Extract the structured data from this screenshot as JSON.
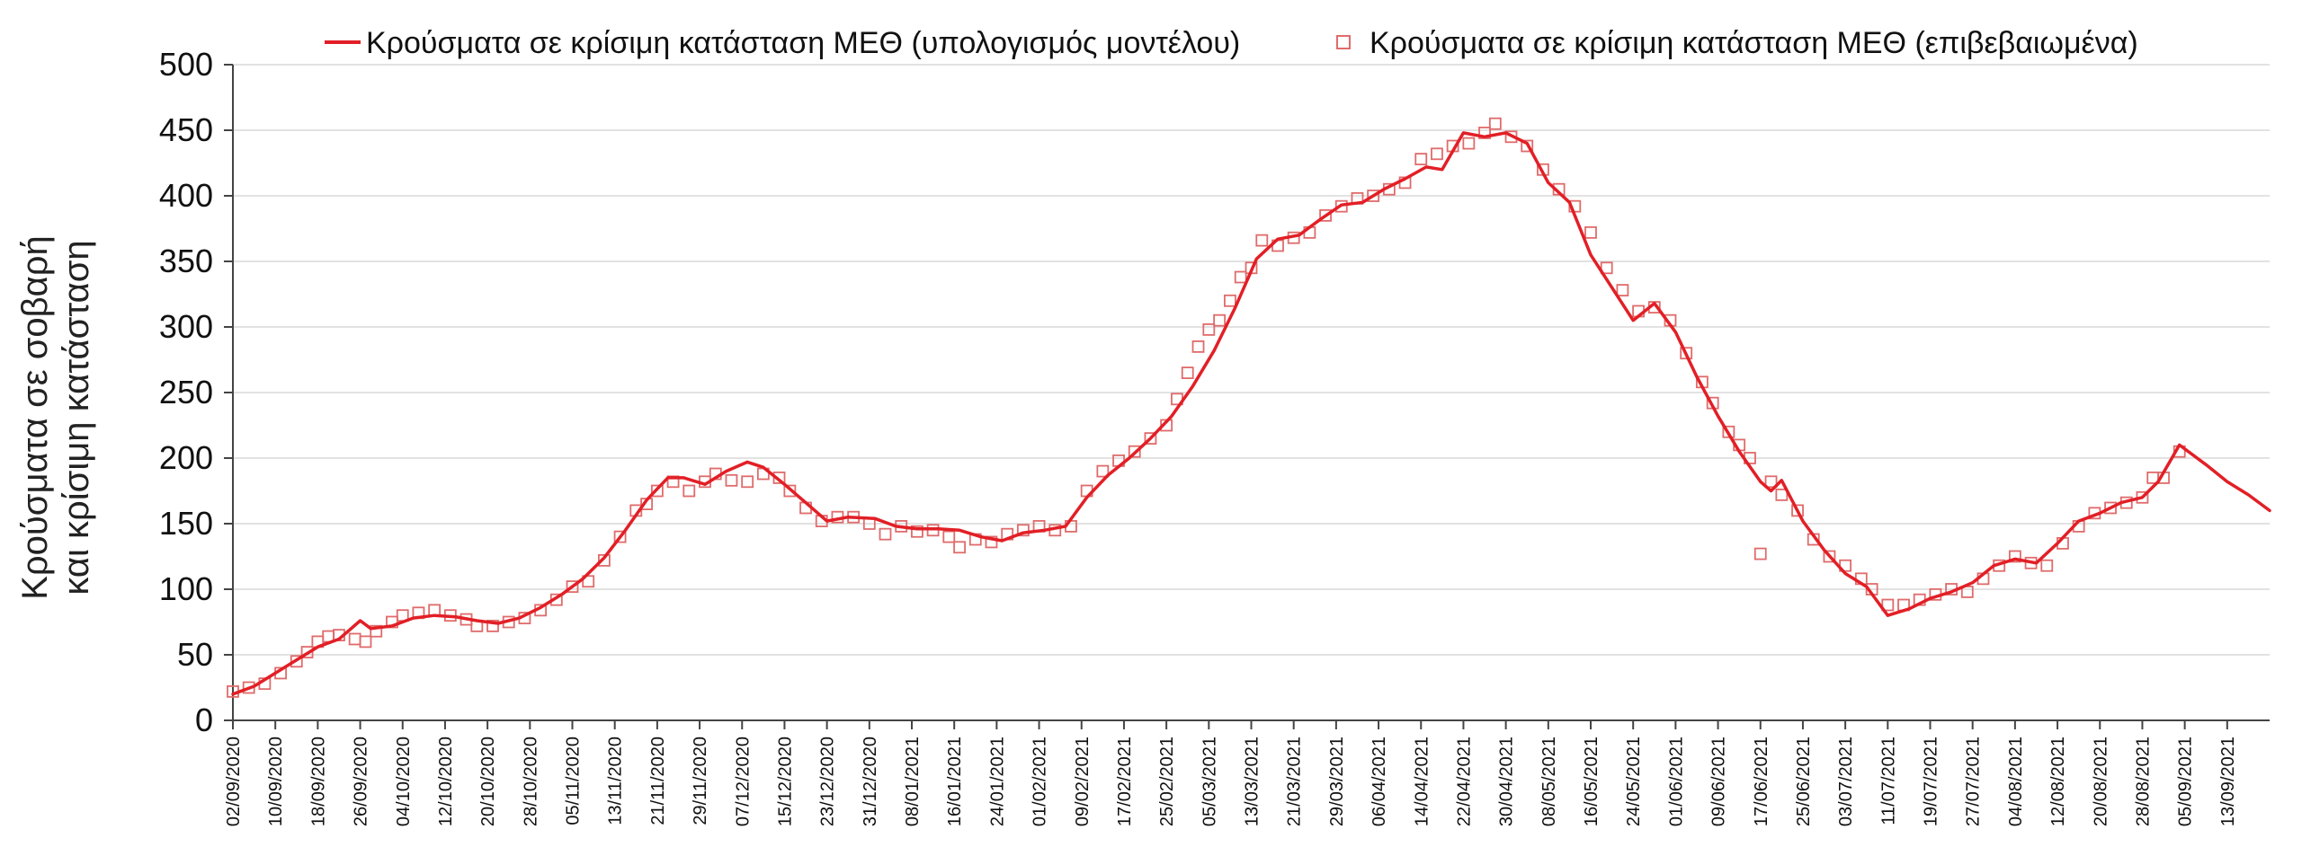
{
  "colors": {
    "series": "#e21f26",
    "grid": "#d9d9d9",
    "axis": "#444444"
  },
  "chart_data": {
    "type": "line",
    "ylabel_lines": [
      "Κρούσματα σε σοβαρή",
      "και κρίσιμη κατάσταση"
    ],
    "ylim": [
      0,
      500
    ],
    "yticks": [
      0,
      50,
      100,
      150,
      200,
      250,
      300,
      350,
      400,
      450,
      500
    ],
    "xlim": [
      "2020-09-02",
      "2021-09-21"
    ],
    "xtick_labels": [
      "02/09/2020",
      "10/09/2020",
      "18/09/2020",
      "26/09/2020",
      "04/10/2020",
      "12/10/2020",
      "20/10/2020",
      "28/10/2020",
      "05/11/2020",
      "13/11/2020",
      "21/11/2020",
      "29/11/2020",
      "07/12/2020",
      "15/12/2020",
      "23/12/2020",
      "31/12/2020",
      "08/01/2021",
      "16/01/2021",
      "24/01/2021",
      "01/02/2021",
      "09/02/2021",
      "17/02/2021",
      "25/02/2021",
      "05/03/2021",
      "13/03/2021",
      "21/03/2021",
      "29/03/2021",
      "06/04/2021",
      "14/04/2021",
      "22/04/2021",
      "30/04/2021",
      "08/05/2021",
      "16/05/2021",
      "24/05/2021",
      "01/06/2021",
      "09/06/2021",
      "17/06/2021",
      "25/06/2021",
      "03/07/2021",
      "11/07/2021",
      "19/07/2021",
      "27/07/2021",
      "04/08/2021",
      "12/08/2021",
      "20/08/2021",
      "28/08/2021",
      "05/09/2021",
      "13/09/2021"
    ],
    "grid": true,
    "legend_position": "top",
    "series": [
      {
        "name": "Κρούσματα σε κρίσιμη κατάσταση ΜΕΘ (υπολογισμός μοντέλου)",
        "style": "line",
        "points": [
          [
            "2020-09-02",
            20
          ],
          [
            "2020-09-06",
            26
          ],
          [
            "2020-09-10",
            36
          ],
          [
            "2020-09-14",
            46
          ],
          [
            "2020-09-18",
            56
          ],
          [
            "2020-09-22",
            62
          ],
          [
            "2020-09-26",
            76
          ],
          [
            "2020-09-28",
            70
          ],
          [
            "2020-10-02",
            72
          ],
          [
            "2020-10-06",
            78
          ],
          [
            "2020-10-10",
            80
          ],
          [
            "2020-10-14",
            79
          ],
          [
            "2020-10-18",
            76
          ],
          [
            "2020-10-22",
            74
          ],
          [
            "2020-10-26",
            78
          ],
          [
            "2020-10-30",
            86
          ],
          [
            "2020-11-03",
            96
          ],
          [
            "2020-11-07",
            108
          ],
          [
            "2020-11-11",
            124
          ],
          [
            "2020-11-15",
            145
          ],
          [
            "2020-11-19",
            168
          ],
          [
            "2020-11-23",
            185
          ],
          [
            "2020-11-26",
            185
          ],
          [
            "2020-11-30",
            180
          ],
          [
            "2020-12-04",
            190
          ],
          [
            "2020-12-08",
            197
          ],
          [
            "2020-12-11",
            193
          ],
          [
            "2020-12-15",
            180
          ],
          [
            "2020-12-19",
            166
          ],
          [
            "2020-12-23",
            152
          ],
          [
            "2020-12-27",
            155
          ],
          [
            "2021-01-01",
            154
          ],
          [
            "2021-01-05",
            148
          ],
          [
            "2021-01-09",
            146
          ],
          [
            "2021-01-13",
            146
          ],
          [
            "2021-01-17",
            145
          ],
          [
            "2021-01-21",
            140
          ],
          [
            "2021-01-25",
            137
          ],
          [
            "2021-01-29",
            143
          ],
          [
            "2021-02-02",
            145
          ],
          [
            "2021-02-06",
            148
          ],
          [
            "2021-02-10",
            170
          ],
          [
            "2021-02-14",
            187
          ],
          [
            "2021-02-18",
            200
          ],
          [
            "2021-02-22",
            215
          ],
          [
            "2021-02-26",
            232
          ],
          [
            "2021-03-02",
            255
          ],
          [
            "2021-03-06",
            282
          ],
          [
            "2021-03-10",
            315
          ],
          [
            "2021-03-14",
            352
          ],
          [
            "2021-03-18",
            367
          ],
          [
            "2021-03-22",
            370
          ],
          [
            "2021-03-26",
            382
          ],
          [
            "2021-03-30",
            393
          ],
          [
            "2021-04-03",
            395
          ],
          [
            "2021-04-07",
            405
          ],
          [
            "2021-04-11",
            413
          ],
          [
            "2021-04-15",
            422
          ],
          [
            "2021-04-18",
            420
          ],
          [
            "2021-04-22",
            448
          ],
          [
            "2021-04-26",
            445
          ],
          [
            "2021-04-30",
            448
          ],
          [
            "2021-05-04",
            440
          ],
          [
            "2021-05-08",
            410
          ],
          [
            "2021-05-12",
            395
          ],
          [
            "2021-05-16",
            355
          ],
          [
            "2021-05-20",
            330
          ],
          [
            "2021-05-24",
            305
          ],
          [
            "2021-05-28",
            318
          ],
          [
            "2021-06-01",
            296
          ],
          [
            "2021-06-05",
            262
          ],
          [
            "2021-06-09",
            232
          ],
          [
            "2021-06-13",
            205
          ],
          [
            "2021-06-17",
            182
          ],
          [
            "2021-06-19",
            175
          ],
          [
            "2021-06-21",
            183
          ],
          [
            "2021-06-25",
            152
          ],
          [
            "2021-06-29",
            130
          ],
          [
            "2021-07-03",
            112
          ],
          [
            "2021-07-07",
            102
          ],
          [
            "2021-07-11",
            80
          ],
          [
            "2021-07-15",
            85
          ],
          [
            "2021-07-19",
            93
          ],
          [
            "2021-07-23",
            98
          ],
          [
            "2021-07-27",
            105
          ],
          [
            "2021-07-31",
            118
          ],
          [
            "2021-08-04",
            123
          ],
          [
            "2021-08-08",
            120
          ],
          [
            "2021-08-12",
            135
          ],
          [
            "2021-08-16",
            152
          ],
          [
            "2021-08-20",
            158
          ],
          [
            "2021-08-24",
            166
          ],
          [
            "2021-08-28",
            170
          ],
          [
            "2021-08-31",
            182
          ],
          [
            "2021-09-04",
            210
          ],
          [
            "2021-09-09",
            195
          ],
          [
            "2021-09-13",
            182
          ],
          [
            "2021-09-17",
            172
          ],
          [
            "2021-09-21",
            160
          ]
        ]
      },
      {
        "name": "Κρούσματα σε κρίσιμη κατάσταση ΜΕΘ (επιβεβαιωμένα)",
        "style": "square-marker",
        "points": [
          [
            "2020-09-02",
            22
          ],
          [
            "2020-09-05",
            25
          ],
          [
            "2020-09-08",
            28
          ],
          [
            "2020-09-11",
            36
          ],
          [
            "2020-09-14",
            45
          ],
          [
            "2020-09-16",
            52
          ],
          [
            "2020-09-18",
            60
          ],
          [
            "2020-09-20",
            64
          ],
          [
            "2020-09-22",
            65
          ],
          [
            "2020-09-25",
            62
          ],
          [
            "2020-09-27",
            60
          ],
          [
            "2020-09-29",
            68
          ],
          [
            "2020-10-02",
            75
          ],
          [
            "2020-10-04",
            80
          ],
          [
            "2020-10-07",
            82
          ],
          [
            "2020-10-10",
            84
          ],
          [
            "2020-10-13",
            80
          ],
          [
            "2020-10-16",
            77
          ],
          [
            "2020-10-18",
            72
          ],
          [
            "2020-10-21",
            72
          ],
          [
            "2020-10-24",
            75
          ],
          [
            "2020-10-27",
            78
          ],
          [
            "2020-10-30",
            84
          ],
          [
            "2020-11-02",
            92
          ],
          [
            "2020-11-05",
            102
          ],
          [
            "2020-11-08",
            106
          ],
          [
            "2020-11-11",
            122
          ],
          [
            "2020-11-14",
            140
          ],
          [
            "2020-11-17",
            160
          ],
          [
            "2020-11-19",
            165
          ],
          [
            "2020-11-21",
            175
          ],
          [
            "2020-11-24",
            182
          ],
          [
            "2020-11-27",
            175
          ],
          [
            "2020-11-30",
            182
          ],
          [
            "2020-12-02",
            188
          ],
          [
            "2020-12-05",
            183
          ],
          [
            "2020-12-08",
            182
          ],
          [
            "2020-12-11",
            188
          ],
          [
            "2020-12-14",
            185
          ],
          [
            "2020-12-16",
            175
          ],
          [
            "2020-12-19",
            162
          ],
          [
            "2020-12-22",
            152
          ],
          [
            "2020-12-25",
            155
          ],
          [
            "2020-12-28",
            155
          ],
          [
            "2020-12-31",
            150
          ],
          [
            "2021-01-03",
            142
          ],
          [
            "2021-01-06",
            148
          ],
          [
            "2021-01-09",
            144
          ],
          [
            "2021-01-12",
            145
          ],
          [
            "2021-01-15",
            140
          ],
          [
            "2021-01-17",
            132
          ],
          [
            "2021-01-20",
            138
          ],
          [
            "2021-01-23",
            136
          ],
          [
            "2021-01-26",
            142
          ],
          [
            "2021-01-29",
            145
          ],
          [
            "2021-02-01",
            148
          ],
          [
            "2021-02-04",
            145
          ],
          [
            "2021-02-07",
            148
          ],
          [
            "2021-02-10",
            175
          ],
          [
            "2021-02-13",
            190
          ],
          [
            "2021-02-16",
            198
          ],
          [
            "2021-02-19",
            205
          ],
          [
            "2021-02-22",
            215
          ],
          [
            "2021-02-25",
            225
          ],
          [
            "2021-02-27",
            245
          ],
          [
            "2021-03-01",
            265
          ],
          [
            "2021-03-03",
            285
          ],
          [
            "2021-03-05",
            298
          ],
          [
            "2021-03-07",
            305
          ],
          [
            "2021-03-09",
            320
          ],
          [
            "2021-03-11",
            338
          ],
          [
            "2021-03-13",
            345
          ],
          [
            "2021-03-15",
            366
          ],
          [
            "2021-03-18",
            362
          ],
          [
            "2021-03-21",
            368
          ],
          [
            "2021-03-24",
            372
          ],
          [
            "2021-03-27",
            385
          ],
          [
            "2021-03-30",
            392
          ],
          [
            "2021-04-02",
            398
          ],
          [
            "2021-04-05",
            400
          ],
          [
            "2021-04-08",
            405
          ],
          [
            "2021-04-11",
            410
          ],
          [
            "2021-04-14",
            428
          ],
          [
            "2021-04-17",
            432
          ],
          [
            "2021-04-20",
            438
          ],
          [
            "2021-04-23",
            440
          ],
          [
            "2021-04-26",
            448
          ],
          [
            "2021-04-28",
            455
          ],
          [
            "2021-05-01",
            445
          ],
          [
            "2021-05-04",
            438
          ],
          [
            "2021-05-07",
            420
          ],
          [
            "2021-05-10",
            405
          ],
          [
            "2021-05-13",
            392
          ],
          [
            "2021-05-16",
            372
          ],
          [
            "2021-05-19",
            345
          ],
          [
            "2021-05-22",
            328
          ],
          [
            "2021-05-25",
            312
          ],
          [
            "2021-05-28",
            315
          ],
          [
            "2021-05-31",
            305
          ],
          [
            "2021-06-03",
            280
          ],
          [
            "2021-06-06",
            258
          ],
          [
            "2021-06-08",
            242
          ],
          [
            "2021-06-11",
            220
          ],
          [
            "2021-06-13",
            210
          ],
          [
            "2021-06-15",
            200
          ],
          [
            "2021-06-17",
            127
          ],
          [
            "2021-06-19",
            182
          ],
          [
            "2021-06-21",
            172
          ],
          [
            "2021-06-24",
            160
          ],
          [
            "2021-06-27",
            138
          ],
          [
            "2021-06-30",
            125
          ],
          [
            "2021-07-03",
            118
          ],
          [
            "2021-07-06",
            108
          ],
          [
            "2021-07-08",
            100
          ],
          [
            "2021-07-11",
            88
          ],
          [
            "2021-07-14",
            88
          ],
          [
            "2021-07-17",
            92
          ],
          [
            "2021-07-20",
            96
          ],
          [
            "2021-07-23",
            100
          ],
          [
            "2021-07-26",
            98
          ],
          [
            "2021-07-29",
            108
          ],
          [
            "2021-08-01",
            118
          ],
          [
            "2021-08-04",
            125
          ],
          [
            "2021-08-07",
            120
          ],
          [
            "2021-08-10",
            118
          ],
          [
            "2021-08-13",
            135
          ],
          [
            "2021-08-16",
            148
          ],
          [
            "2021-08-19",
            158
          ],
          [
            "2021-08-22",
            162
          ],
          [
            "2021-08-25",
            166
          ],
          [
            "2021-08-28",
            170
          ],
          [
            "2021-08-30",
            185
          ],
          [
            "2021-09-01",
            185
          ],
          [
            "2021-09-04",
            205
          ]
        ]
      }
    ]
  }
}
